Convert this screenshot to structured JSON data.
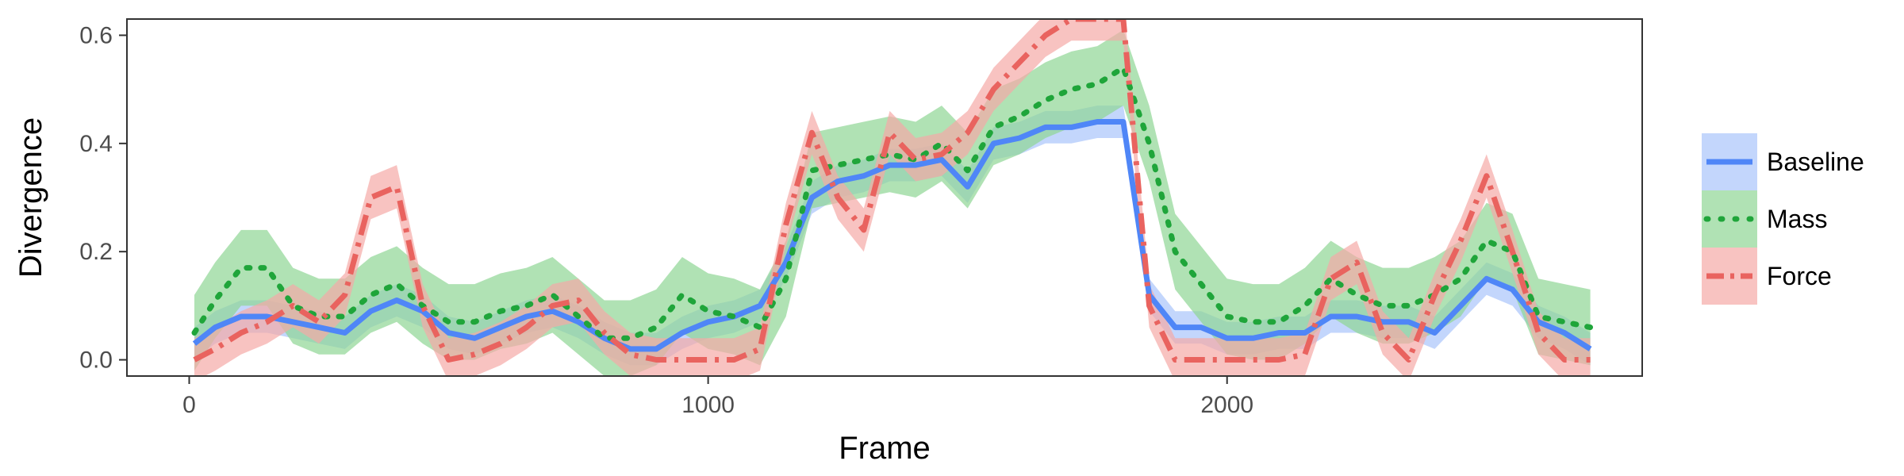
{
  "chart_data": {
    "type": "line",
    "title": "",
    "xlabel": "Frame",
    "ylabel": "Divergence",
    "xlim": [
      -120,
      2800
    ],
    "ylim": [
      -0.03,
      0.63
    ],
    "xticks": [
      0,
      1000,
      2000
    ],
    "xtick_labels": [
      "0",
      "1000",
      "2000"
    ],
    "yticks": [
      0.0,
      0.2,
      0.4,
      0.6
    ],
    "ytick_labels": [
      "0.0",
      "0.2",
      "0.4",
      "0.6"
    ],
    "grid": false,
    "legend_position": "right",
    "series": [
      {
        "name": "Baseline",
        "color": "#4f86f7",
        "band_color": "#aac4fb",
        "dash": "solid",
        "x": [
          10,
          50,
          100,
          150,
          200,
          250,
          300,
          350,
          400,
          450,
          500,
          550,
          600,
          650,
          700,
          750,
          800,
          850,
          900,
          950,
          1000,
          1050,
          1100,
          1150,
          1200,
          1250,
          1300,
          1350,
          1400,
          1450,
          1500,
          1550,
          1600,
          1650,
          1700,
          1750,
          1800,
          1850,
          1900,
          1950,
          2000,
          2050,
          2100,
          2150,
          2200,
          2250,
          2300,
          2350,
          2400,
          2450,
          2500,
          2550,
          2600,
          2650,
          2700
        ],
        "y": [
          0.03,
          0.06,
          0.08,
          0.08,
          0.07,
          0.06,
          0.05,
          0.09,
          0.11,
          0.09,
          0.05,
          0.04,
          0.06,
          0.08,
          0.09,
          0.07,
          0.04,
          0.02,
          0.02,
          0.05,
          0.07,
          0.08,
          0.1,
          0.18,
          0.3,
          0.33,
          0.34,
          0.36,
          0.36,
          0.37,
          0.32,
          0.4,
          0.41,
          0.43,
          0.43,
          0.44,
          0.44,
          0.12,
          0.06,
          0.06,
          0.04,
          0.04,
          0.05,
          0.05,
          0.08,
          0.08,
          0.07,
          0.07,
          0.05,
          0.1,
          0.15,
          0.13,
          0.07,
          0.05,
          0.02
        ],
        "band": [
          0.03,
          0.03,
          0.03,
          0.03,
          0.03,
          0.03,
          0.03,
          0.03,
          0.03,
          0.03,
          0.03,
          0.03,
          0.03,
          0.03,
          0.03,
          0.03,
          0.03,
          0.03,
          0.03,
          0.03,
          0.03,
          0.03,
          0.03,
          0.03,
          0.03,
          0.03,
          0.03,
          0.03,
          0.03,
          0.03,
          0.03,
          0.03,
          0.03,
          0.03,
          0.03,
          0.03,
          0.03,
          0.03,
          0.03,
          0.03,
          0.03,
          0.03,
          0.03,
          0.03,
          0.03,
          0.03,
          0.03,
          0.03,
          0.03,
          0.03,
          0.03,
          0.03,
          0.03,
          0.03,
          0.03
        ]
      },
      {
        "name": "Mass",
        "color": "#1fa53a",
        "band_color": "#8fd694",
        "dash": "dotted",
        "x": [
          10,
          50,
          100,
          150,
          200,
          250,
          300,
          350,
          400,
          450,
          500,
          550,
          600,
          650,
          700,
          750,
          800,
          850,
          900,
          950,
          1000,
          1050,
          1100,
          1150,
          1200,
          1250,
          1300,
          1350,
          1400,
          1450,
          1500,
          1550,
          1600,
          1650,
          1700,
          1750,
          1800,
          1850,
          1900,
          1950,
          2000,
          2050,
          2100,
          2150,
          2200,
          2250,
          2300,
          2350,
          2400,
          2450,
          2500,
          2550,
          2600,
          2650,
          2700
        ],
        "y": [
          0.05,
          0.11,
          0.17,
          0.17,
          0.1,
          0.08,
          0.08,
          0.12,
          0.14,
          0.1,
          0.07,
          0.07,
          0.09,
          0.1,
          0.12,
          0.08,
          0.04,
          0.04,
          0.06,
          0.12,
          0.09,
          0.08,
          0.06,
          0.15,
          0.35,
          0.36,
          0.37,
          0.38,
          0.37,
          0.4,
          0.35,
          0.43,
          0.45,
          0.48,
          0.5,
          0.51,
          0.54,
          0.4,
          0.2,
          0.14,
          0.08,
          0.07,
          0.07,
          0.1,
          0.15,
          0.12,
          0.1,
          0.1,
          0.12,
          0.15,
          0.22,
          0.2,
          0.08,
          0.07,
          0.06
        ],
        "band": [
          0.07,
          0.07,
          0.07,
          0.07,
          0.07,
          0.07,
          0.07,
          0.07,
          0.07,
          0.07,
          0.07,
          0.07,
          0.07,
          0.07,
          0.07,
          0.07,
          0.07,
          0.07,
          0.07,
          0.07,
          0.07,
          0.07,
          0.07,
          0.07,
          0.07,
          0.07,
          0.07,
          0.07,
          0.07,
          0.07,
          0.07,
          0.07,
          0.07,
          0.07,
          0.07,
          0.07,
          0.07,
          0.07,
          0.07,
          0.07,
          0.07,
          0.07,
          0.07,
          0.07,
          0.07,
          0.07,
          0.07,
          0.07,
          0.07,
          0.07,
          0.07,
          0.07,
          0.07,
          0.07,
          0.07
        ]
      },
      {
        "name": "Force",
        "color": "#e9635f",
        "band_color": "#f5aaa7",
        "dash": "dashdot",
        "x": [
          10,
          50,
          100,
          150,
          200,
          250,
          300,
          350,
          400,
          450,
          500,
          550,
          600,
          650,
          700,
          750,
          800,
          850,
          900,
          950,
          1000,
          1050,
          1100,
          1150,
          1200,
          1250,
          1300,
          1350,
          1400,
          1450,
          1500,
          1550,
          1600,
          1650,
          1700,
          1750,
          1800,
          1850,
          1900,
          1950,
          2000,
          2050,
          2100,
          2150,
          2200,
          2250,
          2300,
          2350,
          2400,
          2450,
          2500,
          2550,
          2600,
          2650,
          2700
        ],
        "y": [
          0.0,
          0.02,
          0.05,
          0.07,
          0.1,
          0.07,
          0.12,
          0.3,
          0.32,
          0.1,
          0.0,
          0.01,
          0.03,
          0.06,
          0.1,
          0.11,
          0.05,
          0.01,
          0.0,
          0.0,
          0.0,
          0.0,
          0.02,
          0.25,
          0.42,
          0.3,
          0.24,
          0.42,
          0.37,
          0.38,
          0.42,
          0.5,
          0.55,
          0.6,
          0.63,
          0.63,
          0.63,
          0.1,
          0.0,
          0.0,
          0.0,
          0.0,
          0.0,
          0.01,
          0.15,
          0.18,
          0.05,
          0.0,
          0.12,
          0.22,
          0.34,
          0.2,
          0.05,
          0.0,
          0.0
        ],
        "band": [
          0.04,
          0.04,
          0.04,
          0.04,
          0.04,
          0.04,
          0.04,
          0.04,
          0.04,
          0.04,
          0.04,
          0.04,
          0.04,
          0.04,
          0.04,
          0.04,
          0.04,
          0.04,
          0.04,
          0.04,
          0.04,
          0.04,
          0.04,
          0.04,
          0.04,
          0.04,
          0.04,
          0.04,
          0.04,
          0.04,
          0.04,
          0.04,
          0.04,
          0.04,
          0.04,
          0.04,
          0.04,
          0.04,
          0.04,
          0.04,
          0.04,
          0.04,
          0.04,
          0.04,
          0.04,
          0.04,
          0.04,
          0.04,
          0.04,
          0.04,
          0.04,
          0.04,
          0.04,
          0.04,
          0.04
        ]
      }
    ]
  }
}
